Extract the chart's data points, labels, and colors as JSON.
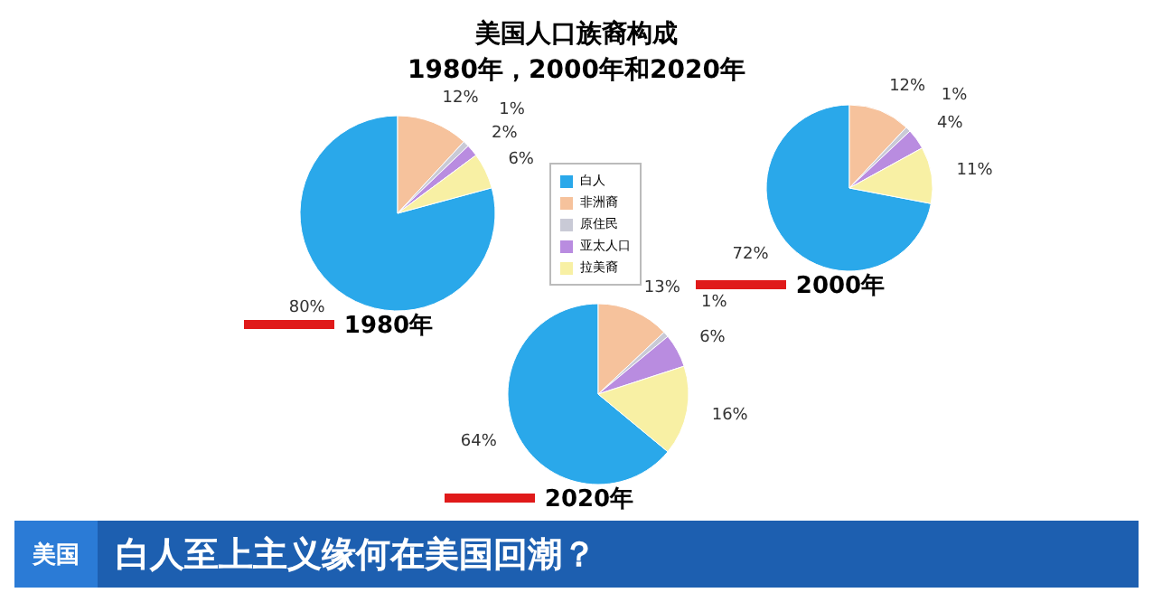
{
  "chart_data": [
    {
      "type": "pie",
      "title": "美国人口族裔构成",
      "subtitle": "1980年，2000年和2020年",
      "xlabel": "1980年",
      "categories": [
        "白人",
        "非洲裔",
        "原住民",
        "亚太人口",
        "拉美裔"
      ],
      "values": [
        80,
        12,
        1,
        2,
        6
      ],
      "value_labels": [
        "80%",
        "12%",
        "1%",
        "2%",
        "6%"
      ],
      "colors": [
        "#2aa8ea",
        "#f6c29c",
        "#c9cad6",
        "#b98ce0",
        "#f8f0a4"
      ],
      "legend": "right",
      "annotations": [
        "美国",
        "白人至上主义缘何在美国回潮？"
      ]
    },
    {
      "type": "pie",
      "xlabel": "2000年",
      "values": [
        72,
        12,
        1,
        4,
        11
      ],
      "value_labels": [
        "72%",
        "12%",
        "1%",
        "4%",
        "11%"
      ],
      "colors": [
        "#2aa8ea",
        "#f6c29c",
        "#c9cad6",
        "#b98ce0",
        "#f8f0a4"
      ]
    },
    {
      "type": "pie",
      "xlabel": "2020年",
      "values": [
        64,
        13,
        1,
        6,
        16
      ],
      "value_labels": [
        "64%",
        "13%",
        "1%",
        "6%",
        "16%"
      ],
      "colors": [
        "#2aa8ea",
        "#f6c29c",
        "#c9cad6",
        "#b98ce0",
        "#f8f0a4"
      ]
    }
  ]
}
